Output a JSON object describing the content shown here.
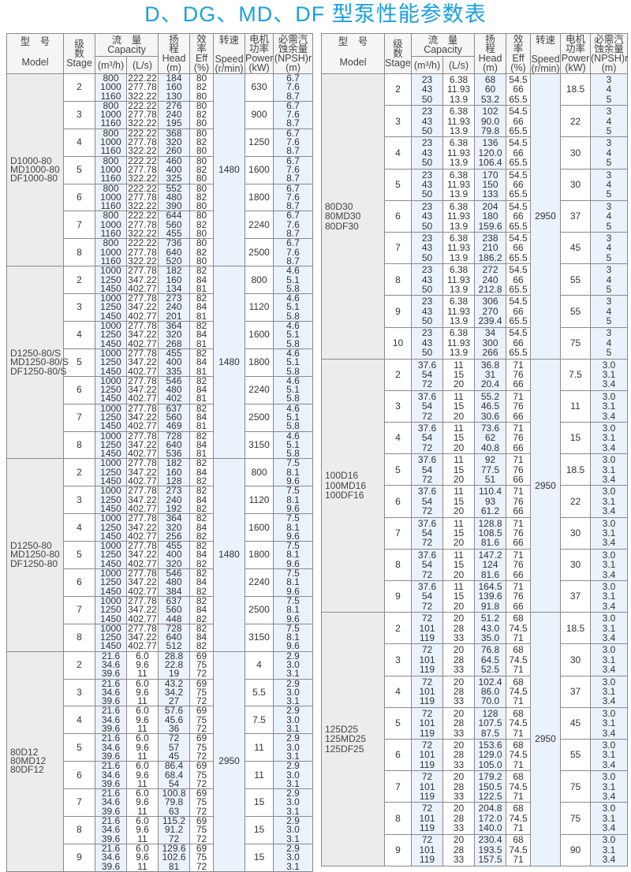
{
  "title": "D、DG、MD、DF 型泵性能参数表",
  "colors": {
    "title": "#1aa0e0",
    "highlight_column": "#eaf2fc",
    "model_column": "#ececed",
    "border": "#8a8a8a"
  },
  "headers": {
    "model_cn": "型　号",
    "model_en": "Model",
    "stage_cn": "级",
    "stage_cn2": "数",
    "stage_en": "Stage",
    "capacity_cn": "流　量",
    "capacity_en": "Capacity",
    "flow_unit": "(m³/h)",
    "ls_unit": "(L/s)",
    "head_cn": "扬",
    "head_cn2": "程",
    "head_en": "Head",
    "head_unit": "(m)",
    "eff_cn": "效",
    "eff_cn2": "率",
    "eff_en": "Eff",
    "eff_unit": "(%)",
    "speed_cn": "转速",
    "speed_en": "Speed",
    "speed_unit": "(r/min)",
    "power_cn": "电机",
    "power_cn2": "功率",
    "power_en": "Power",
    "power_unit": "(kW)",
    "npsh_cn": "必需汽",
    "npsh_cn2": "蚀余量",
    "npsh_en": "(NPSH)r",
    "npsh_unit": "(m)"
  },
  "tables": [
    {
      "groups": [
        {
          "models": [
            "D1000-80",
            "MD1000-80",
            "DF1000-80"
          ],
          "speed": "1480",
          "flow": [
            "800",
            "1000",
            "1160"
          ],
          "ls": [
            "222.22",
            "277.78",
            "322.22"
          ],
          "eff": [
            "80",
            "82",
            "80"
          ],
          "npsh": [
            "6.7",
            "7.6",
            "8.7"
          ],
          "stages": [
            {
              "stage": "2",
              "head": [
                "184",
                "160",
                "130"
              ],
              "power": "630"
            },
            {
              "stage": "3",
              "head": [
                "276",
                "240",
                "195"
              ],
              "power": "900"
            },
            {
              "stage": "4",
              "head": [
                "368",
                "320",
                "260"
              ],
              "power": "1250"
            },
            {
              "stage": "5",
              "head": [
                "460",
                "400",
                "325"
              ],
              "power": "1600"
            },
            {
              "stage": "6",
              "head": [
                "552",
                "480",
                "390"
              ],
              "power": "1800"
            },
            {
              "stage": "7",
              "head": [
                "644",
                "560",
                "455"
              ],
              "power": "2240"
            },
            {
              "stage": "8",
              "head": [
                "736",
                "640",
                "520"
              ],
              "power": "2500"
            }
          ]
        },
        {
          "models": [
            "D1250-80/S",
            "MD1250-80/S",
            "DF1250-80/S"
          ],
          "speed": "1480",
          "flow": [
            "1000",
            "1250",
            "1450"
          ],
          "ls": [
            "277.78",
            "347.22",
            "402.77"
          ],
          "eff": [
            "82",
            "84",
            "81"
          ],
          "npsh": [
            "4.6",
            "5.1",
            "5.8"
          ],
          "stages": [
            {
              "stage": "2",
              "head": [
                "182",
                "160",
                "134"
              ],
              "power": "800"
            },
            {
              "stage": "3",
              "head": [
                "273",
                "240",
                "201"
              ],
              "power": "1120"
            },
            {
              "stage": "4",
              "head": [
                "364",
                "320",
                "268"
              ],
              "power": "1600"
            },
            {
              "stage": "5",
              "head": [
                "455",
                "400",
                "335"
              ],
              "power": "1800"
            },
            {
              "stage": "6",
              "head": [
                "546",
                "480",
                "402"
              ],
              "power": "2240"
            },
            {
              "stage": "7",
              "head": [
                "637",
                "560",
                "469"
              ],
              "power": "2500"
            },
            {
              "stage": "8",
              "head": [
                "728",
                "640",
                "536"
              ],
              "power": "3150"
            }
          ]
        },
        {
          "models": [
            "D1250-80",
            "MD1250-80",
            "DF1250-80"
          ],
          "speed": "1480",
          "flow": [
            "1000",
            "1250",
            "1450"
          ],
          "ls": [
            "277.78",
            "347.22",
            "402.77"
          ],
          "eff": [
            "82",
            "84",
            "82"
          ],
          "npsh": [
            "7.5",
            "8.1",
            "9.6"
          ],
          "stages": [
            {
              "stage": "2",
              "head": [
                "182",
                "160",
                "128"
              ],
              "power": "800"
            },
            {
              "stage": "3",
              "head": [
                "273",
                "240",
                "192"
              ],
              "power": "1120"
            },
            {
              "stage": "4",
              "head": [
                "364",
                "320",
                "256"
              ],
              "power": "1600"
            },
            {
              "stage": "5",
              "head": [
                "455",
                "400",
                "320"
              ],
              "power": "1800"
            },
            {
              "stage": "6",
              "head": [
                "546",
                "480",
                "384"
              ],
              "power": "2240"
            },
            {
              "stage": "7",
              "head": [
                "637",
                "560",
                "448"
              ],
              "power": "2500"
            },
            {
              "stage": "8",
              "head": [
                "728",
                "640",
                "512"
              ],
              "power": "3150"
            }
          ]
        },
        {
          "models": [
            "80D12",
            "80MD12",
            "80DF12"
          ],
          "speed": "2950",
          "flow": [
            "21.6",
            "34.6",
            "39.6"
          ],
          "ls": [
            "6.0",
            "9.6",
            "11"
          ],
          "eff": [
            "69",
            "75",
            "72"
          ],
          "npsh": [
            "2.9",
            "3.0",
            "3.1"
          ],
          "stages": [
            {
              "stage": "2",
              "head": [
                "28.8",
                "22.8",
                "19"
              ],
              "power": "4"
            },
            {
              "stage": "3",
              "head": [
                "43.2",
                "34.2",
                "27"
              ],
              "power": "5.5"
            },
            {
              "stage": "4",
              "head": [
                "57.6",
                "45.6",
                "36"
              ],
              "power": "7.5"
            },
            {
              "stage": "5",
              "head": [
                "72",
                "57",
                "45"
              ],
              "power": "11"
            },
            {
              "stage": "6",
              "head": [
                "86.4",
                "68.4",
                "54"
              ],
              "power": "11"
            },
            {
              "stage": "7",
              "head": [
                "100.8",
                "79.8",
                "63"
              ],
              "power": "15"
            },
            {
              "stage": "8",
              "head": [
                "115.2",
                "91.2",
                "72"
              ],
              "power": "15"
            },
            {
              "stage": "9",
              "head": [
                "129.6",
                "102.6",
                "81"
              ],
              "power": "15"
            }
          ]
        }
      ]
    },
    {
      "groups": [
        {
          "models": [
            "80D30",
            "80MD30",
            "80DF30"
          ],
          "speed": "2950",
          "flow": [
            "23",
            "43",
            "50"
          ],
          "ls": [
            "6.38",
            "11.93",
            "13.9"
          ],
          "eff": [
            "54.5",
            "66",
            "65.5"
          ],
          "npsh": [
            "3",
            "4",
            "5"
          ],
          "stages": [
            {
              "stage": "2",
              "head": [
                "68",
                "60",
                "53.2"
              ],
              "power": "18.5"
            },
            {
              "stage": "3",
              "head": [
                "102",
                "90.0",
                "79.8"
              ],
              "power": "22"
            },
            {
              "stage": "4",
              "head": [
                "136",
                "120.0",
                "106.4"
              ],
              "power": "30"
            },
            {
              "stage": "5",
              "head": [
                "170",
                "150",
                "133"
              ],
              "power": "30"
            },
            {
              "stage": "6",
              "head": [
                "204",
                "180",
                "159.6"
              ],
              "power": "37"
            },
            {
              "stage": "7",
              "head": [
                "238",
                "210",
                "186.2"
              ],
              "power": "45"
            },
            {
              "stage": "8",
              "head": [
                "272",
                "240",
                "212.8"
              ],
              "power": "55"
            },
            {
              "stage": "9",
              "head": [
                "306",
                "270",
                "239.4"
              ],
              "power": "55"
            },
            {
              "stage": "10",
              "head": [
                "34",
                "300",
                "266"
              ],
              "power": "75"
            }
          ]
        },
        {
          "models": [
            "100D16",
            "100MD16",
            "100DF16"
          ],
          "speed": "2950",
          "flow": [
            "37.6",
            "54",
            "72"
          ],
          "ls": [
            "11",
            "15",
            "20"
          ],
          "eff": [
            "71",
            "76",
            "66"
          ],
          "npsh": [
            "3.0",
            "3.1",
            "3.4"
          ],
          "stages": [
            {
              "stage": "2",
              "head": [
                "36.8",
                "31",
                "20.4"
              ],
              "power": "7.5"
            },
            {
              "stage": "3",
              "head": [
                "55.2",
                "46.5",
                "30.6"
              ],
              "power": "11"
            },
            {
              "stage": "4",
              "head": [
                "73.6",
                "62",
                "40.8"
              ],
              "power": "15"
            },
            {
              "stage": "5",
              "head": [
                "92",
                "77.5",
                "51"
              ],
              "power": "18.5"
            },
            {
              "stage": "6",
              "head": [
                "110.4",
                "93",
                "61.2"
              ],
              "power": "22"
            },
            {
              "stage": "7",
              "head": [
                "128.8",
                "108.5",
                "81.6"
              ],
              "power": "30"
            },
            {
              "stage": "8",
              "head": [
                "147.2",
                "124",
                "81.6"
              ],
              "power": "30"
            },
            {
              "stage": "9",
              "head": [
                "164.5",
                "139.6",
                "91.8"
              ],
              "power": "37"
            }
          ]
        },
        {
          "models": [
            "125D25",
            "125MD25",
            "125DF25"
          ],
          "speed": "2950",
          "flow": [
            "72",
            "101",
            "119"
          ],
          "ls": [
            "20",
            "28",
            "33"
          ],
          "eff": [
            "68",
            "74.5",
            "71"
          ],
          "npsh": [
            "3.0",
            "3.1",
            "3.4"
          ],
          "stages": [
            {
              "stage": "2",
              "head": [
                "51.2",
                "43.0",
                "35.0"
              ],
              "power": "18.5"
            },
            {
              "stage": "3",
              "head": [
                "76.8",
                "64.5",
                "52.5"
              ],
              "power": "30"
            },
            {
              "stage": "4",
              "head": [
                "102.4",
                "86.0",
                "70.0"
              ],
              "power": "37"
            },
            {
              "stage": "5",
              "head": [
                "128",
                "107.5",
                "87.5"
              ],
              "power": "45"
            },
            {
              "stage": "6",
              "head": [
                "153.6",
                "129.0",
                "105.0"
              ],
              "power": "55"
            },
            {
              "stage": "7",
              "head": [
                "179.2",
                "150.5",
                "122.5"
              ],
              "power": "75"
            },
            {
              "stage": "8",
              "head": [
                "204.8",
                "172.0",
                "140.0"
              ],
              "power": "75"
            },
            {
              "stage": "9",
              "head": [
                "230.4",
                "193.5",
                "157.5"
              ],
              "power": "90"
            }
          ]
        }
      ]
    }
  ]
}
